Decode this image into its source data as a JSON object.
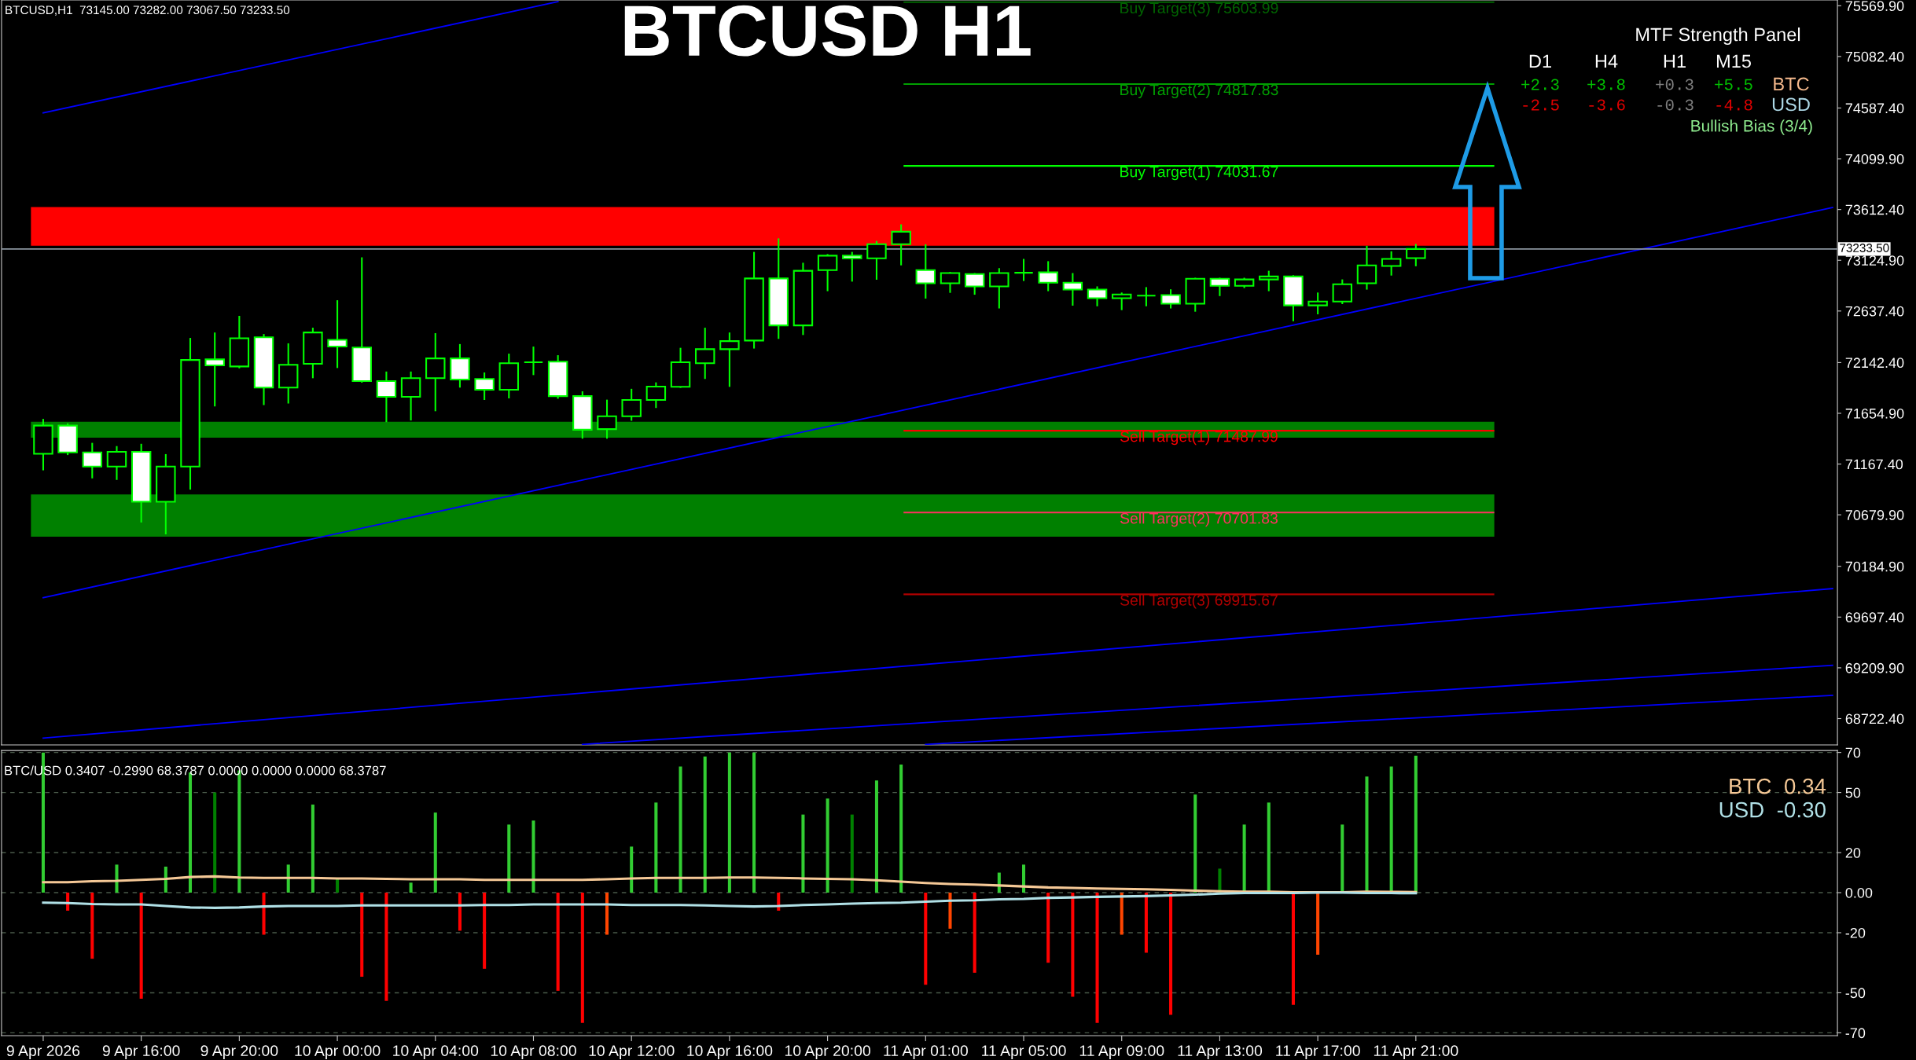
{
  "chart_data": [
    {
      "type": "candlestick",
      "title": "BTCUSD H1",
      "categories": [
        null,
        null,
        null,
        null,
        null,
        null,
        null,
        null,
        null,
        null,
        null,
        null,
        null,
        null,
        null,
        null,
        null,
        null,
        null,
        null,
        null,
        null,
        null,
        null,
        null,
        null,
        null,
        null,
        null,
        null,
        null,
        null,
        null,
        null,
        null,
        null,
        null,
        null,
        null,
        null,
        null,
        null,
        null,
        null,
        null,
        null,
        null,
        null,
        null,
        null,
        null,
        null,
        null,
        null,
        null,
        null,
        null,
        null,
        null,
        null,
        null,
        null,
        null,
        null,
        null,
        null,
        null,
        null,
        null,
        null,
        null,
        null,
        null,
        null
      ],
      "ohlc": [
        [
          71266,
          71601,
          71107,
          71537
        ],
        [
          71537,
          71558,
          71254,
          71279
        ],
        [
          71279,
          71371,
          71030,
          71143
        ],
        [
          71143,
          71340,
          71015,
          71285
        ],
        [
          71285,
          71362,
          70606,
          70806
        ],
        [
          70806,
          71263,
          70492,
          71143
        ],
        [
          71143,
          72379,
          70922,
          72167
        ],
        [
          72173,
          72431,
          71721,
          72115
        ],
        [
          72105,
          72591,
          72087,
          72376
        ],
        [
          72385,
          72416,
          71734,
          71902
        ],
        [
          71902,
          72327,
          71749,
          72121
        ],
        [
          72130,
          72477,
          71992,
          72431
        ],
        [
          72360,
          72741,
          72090,
          72296
        ],
        [
          72287,
          73153,
          71949,
          71964
        ],
        [
          71964,
          72056,
          71570,
          71813
        ],
        [
          71813,
          72056,
          71586,
          71992
        ],
        [
          71992,
          72425,
          71675,
          72182
        ],
        [
          72182,
          72320,
          71902,
          71979
        ],
        [
          71985,
          72047,
          71783,
          71881
        ],
        [
          71881,
          72228,
          71798,
          72136
        ],
        [
          72145,
          72296,
          72022,
          72145
        ],
        [
          72151,
          72213,
          71795,
          71820
        ],
        [
          71820,
          71866,
          71411,
          71497
        ],
        [
          71503,
          71786,
          71411,
          71626
        ],
        [
          71626,
          71890,
          71583,
          71783
        ],
        [
          71783,
          71952,
          71706,
          71912
        ],
        [
          71909,
          72284,
          71899,
          72145
        ],
        [
          72136,
          72477,
          71985,
          72271
        ],
        [
          72271,
          72431,
          71909,
          72348
        ],
        [
          72354,
          73205,
          72277,
          72950
        ],
        [
          72950,
          73335,
          72370,
          72499
        ],
        [
          72499,
          73101,
          72407,
          73024
        ],
        [
          73030,
          73184,
          72828,
          73169
        ],
        [
          73169,
          73205,
          72920,
          73144
        ],
        [
          73144,
          73310,
          72938,
          73279
        ],
        [
          73279,
          73470,
          73076,
          73399
        ],
        [
          73030,
          73279,
          72757,
          72904
        ],
        [
          72904,
          73012,
          72812,
          73002
        ],
        [
          72993,
          73002,
          72794,
          72874
        ],
        [
          72874,
          73049,
          72662,
          73002
        ],
        [
          73005,
          73138,
          72926,
          73005
        ],
        [
          73009,
          73116,
          72828,
          72910
        ],
        [
          72910,
          73002,
          72689,
          72843
        ],
        [
          72843,
          72874,
          72683,
          72760
        ],
        [
          72760,
          72815,
          72646,
          72797
        ],
        [
          72785,
          72867,
          72683,
          72785
        ],
        [
          72791,
          72846,
          72662,
          72708
        ],
        [
          72708,
          72957,
          72631,
          72947
        ],
        [
          72947,
          72957,
          72781,
          72880
        ],
        [
          72880,
          72957,
          72858,
          72941
        ],
        [
          72941,
          73024,
          72828,
          72969
        ],
        [
          72969,
          72981,
          72539,
          72692
        ],
        [
          72692,
          72815,
          72606,
          72729
        ],
        [
          72729,
          72941,
          72704,
          72895
        ],
        [
          72904,
          73264,
          72843,
          73076
        ],
        [
          73070,
          73211,
          72978,
          73138
        ],
        [
          73145,
          73282,
          73067.5,
          73233.5
        ],
        null,
        null,
        null,
        null,
        null,
        null,
        null,
        null,
        null,
        null,
        null,
        null,
        null,
        null,
        null,
        null,
        null
      ],
      "series": [
        {
          "type": "line",
          "color": "#0000ff",
          "values": [
            74540,
            null,
            null,
            null,
            null,
            null,
            null,
            null,
            null,
            null,
            null,
            null,
            null,
            null,
            null,
            null,
            null,
            null,
            null,
            null,
            null,
            75609,
            null,
            null,
            null,
            null,
            null,
            null,
            null,
            null,
            null,
            null,
            null,
            null,
            null,
            null,
            null,
            null,
            null,
            null,
            null,
            null,
            null,
            null,
            null,
            null,
            null,
            null,
            null,
            null,
            null,
            null,
            null,
            null,
            null,
            null,
            null,
            null,
            null,
            null,
            null,
            null,
            null,
            null,
            null,
            null,
            null,
            null,
            null,
            null,
            null,
            null,
            null,
            null
          ]
        },
        {
          "type": "line",
          "color": "#0000ff",
          "values": [
            69884,
            null,
            null,
            null,
            null,
            null,
            null,
            null,
            null,
            null,
            null,
            null,
            null,
            null,
            null,
            null,
            null,
            null,
            null,
            null,
            null,
            null,
            null,
            null,
            null,
            null,
            null,
            null,
            null,
            null,
            null,
            null,
            null,
            null,
            null,
            null,
            null,
            null,
            null,
            null,
            null,
            null,
            null,
            null,
            null,
            null,
            null,
            null,
            null,
            null,
            null,
            null,
            null,
            null,
            null,
            null,
            null,
            null,
            null,
            null,
            null,
            null,
            null,
            null,
            null,
            null,
            null,
            null,
            null,
            null,
            null,
            null,
            null,
            73632
          ]
        },
        {
          "type": "line",
          "color": "#0000ff",
          "values": [
            68535,
            null,
            null,
            null,
            null,
            null,
            null,
            null,
            null,
            null,
            null,
            null,
            null,
            null,
            null,
            null,
            null,
            null,
            null,
            null,
            null,
            null,
            null,
            null,
            null,
            null,
            null,
            null,
            null,
            null,
            null,
            null,
            null,
            null,
            null,
            null,
            null,
            null,
            null,
            null,
            null,
            null,
            null,
            null,
            null,
            null,
            null,
            null,
            null,
            null,
            null,
            null,
            null,
            null,
            null,
            null,
            null,
            null,
            null,
            null,
            null,
            null,
            null,
            null,
            null,
            null,
            null,
            null,
            null,
            null,
            null,
            null,
            null,
            69971
          ]
        },
        {
          "type": "line",
          "color": "#0000ff",
          "values": [
            null,
            null,
            null,
            null,
            null,
            null,
            null,
            null,
            null,
            null,
            null,
            null,
            null,
            null,
            null,
            null,
            null,
            null,
            null,
            null,
            null,
            null,
            68475,
            null,
            null,
            null,
            null,
            null,
            null,
            null,
            null,
            null,
            null,
            null,
            null,
            null,
            null,
            null,
            null,
            null,
            null,
            null,
            null,
            null,
            null,
            null,
            null,
            null,
            null,
            null,
            null,
            null,
            null,
            null,
            null,
            null,
            null,
            null,
            null,
            null,
            null,
            null,
            null,
            null,
            null,
            null,
            null,
            null,
            null,
            null,
            null,
            null,
            null,
            69234
          ]
        },
        {
          "type": "line",
          "color": "#0000ff",
          "values": [
            null,
            null,
            null,
            null,
            null,
            null,
            null,
            null,
            null,
            null,
            null,
            null,
            null,
            null,
            null,
            null,
            null,
            null,
            null,
            null,
            null,
            null,
            null,
            null,
            null,
            null,
            null,
            null,
            null,
            null,
            null,
            null,
            null,
            null,
            null,
            null,
            68475,
            null,
            null,
            null,
            null,
            null,
            null,
            null,
            null,
            null,
            null,
            null,
            null,
            null,
            null,
            null,
            null,
            null,
            null,
            null,
            null,
            null,
            null,
            null,
            null,
            null,
            null,
            null,
            null,
            null,
            null,
            null,
            null,
            null,
            null,
            null,
            null,
            68946
          ]
        }
      ],
      "ylim": [
        68470,
        75625
      ],
      "yticks": [
        {
          "value": 75569.9,
          "label": "75569.90"
        },
        {
          "value": 75082.4,
          "label": "75082.40"
        },
        {
          "value": 74587.4,
          "label": "74587.40"
        },
        {
          "value": 74099.9,
          "label": "74099.90"
        },
        {
          "value": 73612.4,
          "label": "73612.40"
        },
        {
          "value": 73124.9,
          "label": "73124.90"
        },
        {
          "value": 72637.4,
          "label": "72637.40"
        },
        {
          "value": 72142.4,
          "label": "72142.40"
        },
        {
          "value": 71654.9,
          "label": "71654.90"
        },
        {
          "value": 71167.4,
          "label": "71167.40"
        },
        {
          "value": 70679.9,
          "label": "70679.90"
        },
        {
          "value": 70184.9,
          "label": "70184.90"
        },
        {
          "value": 69697.4,
          "label": "69697.40"
        },
        {
          "value": 69209.9,
          "label": "69209.90"
        },
        {
          "value": 68722.4,
          "label": "68722.40"
        }
      ],
      "ref_lines": [
        {
          "axis": "y",
          "value": 73233.5,
          "label": "73233.50",
          "color": "#8c96a0"
        },
        {
          "axis": "y",
          "value": 75603.99,
          "label": "Buy Target(3) 75603.99",
          "color": "#006400"
        },
        {
          "axis": "y",
          "value": 74817.83,
          "label": "Buy Target(2) 74817.83",
          "color": "#00a000"
        },
        {
          "axis": "y",
          "value": 74031.67,
          "label": "Buy Target(1) 74031.67",
          "color": "#00ff00"
        },
        {
          "axis": "y",
          "value": 71487.99,
          "label": "Sell Target(1) 71487.99",
          "color": "#ff0000"
        },
        {
          "axis": "y",
          "value": 70701.83,
          "label": "Sell Target(2) 70701.83",
          "color": "#ff3060"
        },
        {
          "axis": "y",
          "value": 69915.67,
          "label": "Sell Target(3) 69915.67",
          "color": "#b00000"
        }
      ],
      "bands": [
        {
          "axis": "y",
          "from": 73264,
          "to": 73636,
          "color": "#ff0000"
        },
        {
          "axis": "y",
          "from": 71420,
          "to": 71573,
          "color": "#008000"
        },
        {
          "axis": "y",
          "from": 70470,
          "to": 70876,
          "color": "#008000"
        }
      ],
      "annotations": [
        "BTCUSD,H1  73145.00 73282.00 73067.50 73233.50",
        "MTF Strength Panel",
        "D1",
        "H4",
        "H1",
        "M15",
        "+2.3",
        "+3.8",
        "+0.3",
        "+5.5",
        "BTC",
        "-2.5",
        "-3.6",
        "-0.3",
        "-4.8",
        "USD",
        "Bullish Bias (3/4)"
      ],
      "tick_labels": "y"
    },
    {
      "type": "bar",
      "categories": [
        "9 Apr 2026",
        null,
        null,
        null,
        "9 Apr 16:00",
        null,
        null,
        null,
        "9 Apr 20:00",
        null,
        null,
        null,
        "10 Apr 00:00",
        null,
        null,
        null,
        "10 Apr 04:00",
        null,
        null,
        null,
        "10 Apr 08:00",
        null,
        null,
        null,
        "10 Apr 12:00",
        null,
        null,
        null,
        "10 Apr 16:00",
        null,
        null,
        null,
        "10 Apr 20:00",
        null,
        null,
        null,
        "11 Apr 01:00",
        null,
        null,
        null,
        "11 Apr 05:00",
        null,
        null,
        null,
        "11 Apr 09:00",
        null,
        null,
        null,
        "11 Apr 13:00",
        null,
        null,
        null,
        "11 Apr 17:00",
        null,
        null,
        null,
        "11 Apr 21:00",
        null,
        null,
        null,
        null,
        null,
        null,
        null,
        null,
        null,
        null,
        null,
        null,
        null,
        null,
        null,
        null,
        null
      ],
      "series": [
        {
          "type": "bar",
          "colors": [
            "#32cd32",
            "#ff0000",
            "#ff0000",
            "#32cd32",
            "#ff0000",
            "#32cd32",
            "#32cd32",
            "#008000",
            "#32cd32",
            "#ff0000",
            "#32cd32",
            "#32cd32",
            "#008000",
            "#ff0000",
            "#ff0000",
            "#32cd32",
            "#32cd32",
            "#ff0000",
            "#ff0000",
            "#32cd32",
            "#32cd32",
            "#ff0000",
            "#ff0000",
            "#ff4500",
            "#32cd32",
            "#32cd32",
            "#32cd32",
            "#32cd32",
            "#32cd32",
            "#32cd32",
            "#ff0000",
            "#32cd32",
            "#32cd32",
            "#008000",
            "#32cd32",
            "#32cd32",
            "#ff0000",
            "#ff4500",
            "#ff0000",
            "#32cd32",
            "#32cd32",
            "#ff0000",
            "#ff0000",
            "#ff0000",
            "#ff4500",
            "#ff0000",
            "#ff0000",
            "#32cd32",
            "#008000",
            "#32cd32",
            "#32cd32",
            "#ff0000",
            "#ff4500",
            "#32cd32",
            "#32cd32",
            "#32cd32",
            "#32cd32",
            null,
            null,
            null,
            null,
            null,
            null,
            null,
            null,
            null,
            null,
            null,
            null,
            null,
            null,
            null,
            null,
            null
          ],
          "values": [
            70,
            -9,
            -33,
            14,
            -53,
            13,
            60,
            50,
            61,
            -21,
            14,
            44,
            7,
            -42,
            -54,
            5,
            40,
            -19,
            -38,
            34,
            36,
            -49,
            -65,
            -21,
            23,
            45,
            63,
            68,
            70,
            70,
            -9,
            39,
            47,
            39,
            56,
            64,
            -46,
            -18,
            -40,
            10,
            14,
            -35,
            -52,
            -65,
            -21,
            -30,
            -61,
            49,
            12,
            34,
            45,
            -56,
            -31,
            34,
            58,
            63,
            68.4,
            null,
            null,
            null,
            null,
            null,
            null,
            null,
            null,
            null,
            null,
            null,
            null,
            null,
            null,
            null,
            null,
            null
          ]
        },
        {
          "type": "line",
          "color": "#f5c896",
          "values": [
            5.2,
            5.2,
            5.7,
            5.9,
            6.4,
            6.9,
            7.8,
            8.1,
            7.6,
            7.4,
            7.4,
            7.4,
            7.1,
            7.1,
            6.9,
            6.7,
            6.7,
            6.7,
            6.4,
            6.4,
            6.4,
            6.4,
            6.4,
            6.7,
            7.1,
            7.4,
            7.4,
            7.4,
            7.6,
            7.6,
            7.4,
            7.1,
            6.9,
            6.7,
            6.2,
            5.5,
            4.8,
            4.3,
            4.0,
            3.6,
            3.1,
            2.6,
            2.4,
            2.1,
            1.9,
            1.7,
            1.4,
            1.0,
            0.7,
            0.5,
            0.5,
            0.2,
            0.2,
            0.2,
            0.5,
            0.4,
            0.3,
            null,
            null,
            null,
            null,
            null,
            null,
            null,
            null,
            null,
            null,
            null,
            null,
            null,
            null,
            null,
            null,
            null
          ]
        },
        {
          "type": "line",
          "color": "#b0e0e6",
          "values": [
            -5.0,
            -5.2,
            -5.7,
            -5.9,
            -5.9,
            -6.7,
            -7.4,
            -7.6,
            -7.4,
            -6.9,
            -6.7,
            -6.7,
            -6.7,
            -6.4,
            -6.4,
            -6.4,
            -6.4,
            -6.4,
            -6.2,
            -6.2,
            -5.9,
            -5.9,
            -5.9,
            -5.9,
            -6.2,
            -6.2,
            -6.2,
            -6.4,
            -6.7,
            -6.9,
            -6.7,
            -6.2,
            -5.9,
            -5.5,
            -5.2,
            -5.0,
            -4.5,
            -4.0,
            -3.8,
            -3.3,
            -3.1,
            -2.6,
            -2.4,
            -2.1,
            -1.9,
            -1.7,
            -1.4,
            -1.0,
            -0.5,
            -0.2,
            -0.2,
            -0.2,
            0,
            0,
            -0.2,
            -0.2,
            -0.3,
            null,
            null,
            null,
            null,
            null,
            null,
            null,
            null,
            null,
            null,
            null,
            null,
            null,
            null,
            null,
            null,
            null
          ]
        }
      ],
      "ylim": [
        -71.4,
        71
      ],
      "yticks": [
        70,
        50,
        20,
        {
          "value": 0,
          "label": "0.00"
        },
        -20,
        -50,
        -70
      ],
      "grid": "y",
      "annotations": [
        "BTC/USD 0.3407 -0.2990 68.3787 0.0000 0.0000 0.0000 68.3787",
        "BTC  0.34",
        "USD  -0.30"
      ]
    }
  ]
}
